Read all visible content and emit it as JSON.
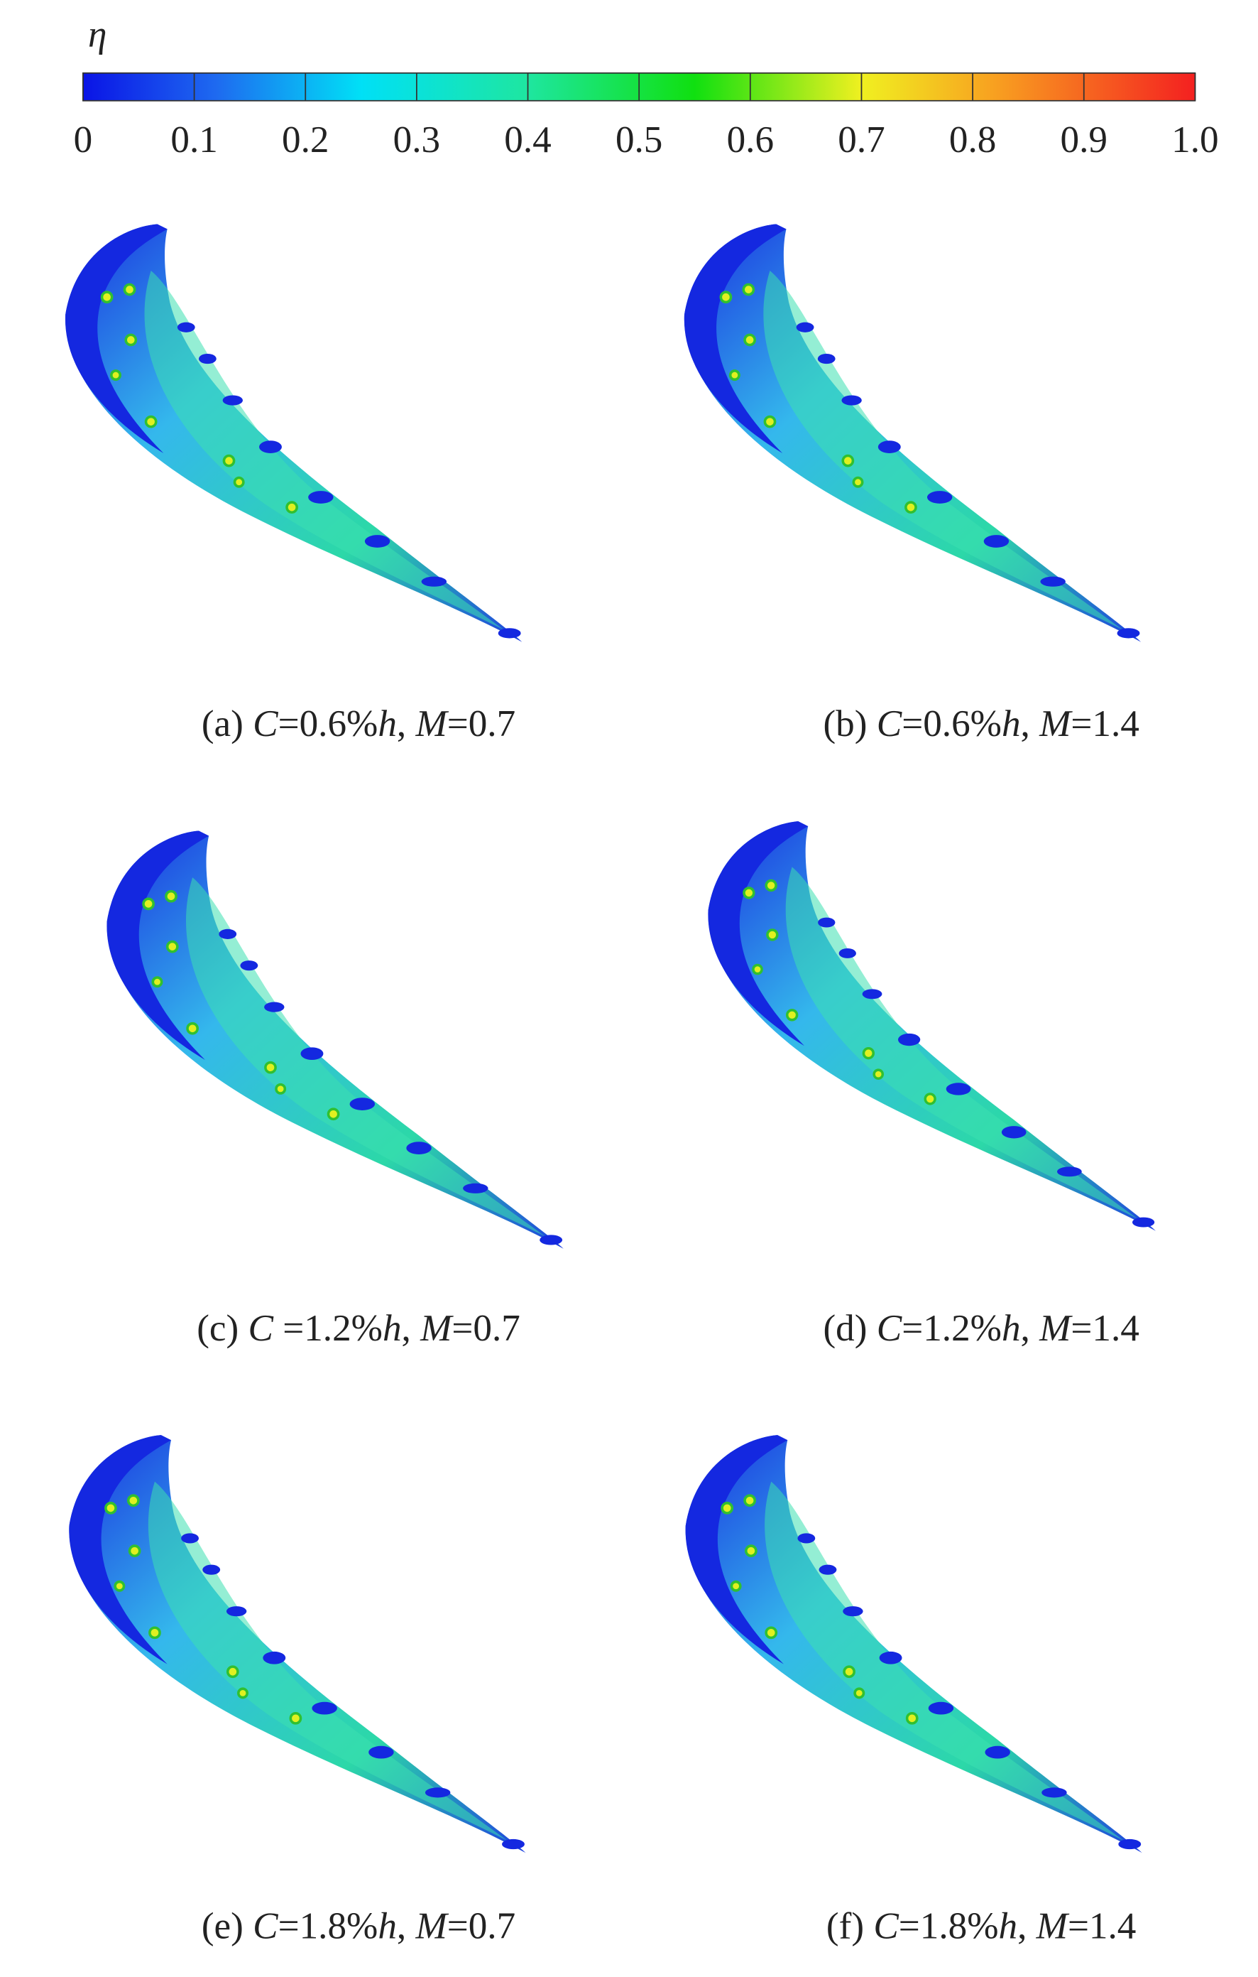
{
  "colorbar": {
    "label": "η",
    "ticks": [
      0,
      0.1,
      0.2,
      0.3,
      0.4,
      0.5,
      0.6,
      0.7,
      0.8,
      0.9,
      {
        "value": 1,
        "label": "1.0"
      }
    ],
    "range": [
      0,
      1
    ]
  },
  "panels": [
    {
      "caption": [
        {
          "text": "(a) "
        },
        {
          "text": "C",
          "italic": true
        },
        {
          "text": "=0.6%"
        },
        {
          "text": "h",
          "italic": true
        },
        {
          "text": ", "
        },
        {
          "text": "M",
          "italic": true
        },
        {
          "text": "=0.7"
        }
      ]
    },
    {
      "caption": [
        {
          "text": "(b) "
        },
        {
          "text": "C",
          "italic": true
        },
        {
          "text": "=0.6%"
        },
        {
          "text": "h",
          "italic": true
        },
        {
          "text": ", "
        },
        {
          "text": "M",
          "italic": true
        },
        {
          "text": "=1.4"
        }
      ]
    },
    {
      "caption": [
        {
          "text": "(c) "
        },
        {
          "text": "C",
          "italic": true
        },
        {
          "text": " =1.2%"
        },
        {
          "text": "h",
          "italic": true
        },
        {
          "text": ", "
        },
        {
          "text": "M",
          "italic": true
        },
        {
          "text": "=0.7"
        }
      ]
    },
    {
      "caption": [
        {
          "text": "(d) "
        },
        {
          "text": "C",
          "italic": true
        },
        {
          "text": "=1.2%"
        },
        {
          "text": "h",
          "italic": true
        },
        {
          "text": ", "
        },
        {
          "text": "M",
          "italic": true
        },
        {
          "text": "=1.4"
        }
      ]
    },
    {
      "caption": [
        {
          "text": "(e) "
        },
        {
          "text": "C",
          "italic": true
        },
        {
          "text": "=1.8%"
        },
        {
          "text": "h",
          "italic": true
        },
        {
          "text": ", "
        },
        {
          "text": "M",
          "italic": true
        },
        {
          "text": "=0.7"
        }
      ]
    },
    {
      "caption": [
        {
          "text": "(f) "
        },
        {
          "text": "C",
          "italic": true
        },
        {
          "text": "=1.8%"
        },
        {
          "text": "h",
          "italic": true
        },
        {
          "text": ", "
        },
        {
          "text": "M",
          "italic": true
        },
        {
          "text": "=1.4"
        }
      ]
    }
  ]
}
